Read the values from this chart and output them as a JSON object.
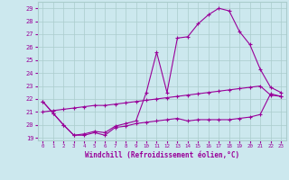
{
  "xlabel": "Windchill (Refroidissement éolien,°C)",
  "bg_color": "#cce8ee",
  "grid_color": "#aacccc",
  "line_color": "#990099",
  "xlim_min": -0.5,
  "xlim_max": 23.5,
  "ylim_min": 18.8,
  "ylim_max": 29.5,
  "yticks": [
    19,
    20,
    21,
    22,
    23,
    24,
    25,
    26,
    27,
    28,
    29
  ],
  "xticks": [
    0,
    1,
    2,
    3,
    4,
    5,
    6,
    7,
    8,
    9,
    10,
    11,
    12,
    13,
    14,
    15,
    16,
    17,
    18,
    19,
    20,
    21,
    22,
    23
  ],
  "series1_x": [
    0,
    1,
    2,
    3,
    4,
    5,
    6,
    7,
    8,
    9,
    10,
    11,
    12,
    13,
    14,
    15,
    16,
    17,
    18,
    19,
    20,
    21,
    22,
    23
  ],
  "series1_y": [
    21.8,
    20.9,
    20.0,
    19.2,
    19.2,
    19.4,
    19.2,
    19.8,
    19.9,
    20.1,
    20.2,
    20.3,
    20.4,
    20.5,
    20.3,
    20.4,
    20.4,
    20.4,
    20.4,
    20.5,
    20.6,
    20.8,
    22.4,
    22.2
  ],
  "series2_x": [
    0,
    1,
    2,
    3,
    4,
    5,
    6,
    7,
    8,
    9,
    10,
    11,
    12,
    13,
    14,
    15,
    16,
    17,
    18,
    19,
    20,
    21,
    22,
    23
  ],
  "series2_y": [
    21.0,
    21.1,
    21.2,
    21.3,
    21.4,
    21.5,
    21.5,
    21.6,
    21.7,
    21.8,
    21.9,
    22.0,
    22.1,
    22.2,
    22.3,
    22.4,
    22.5,
    22.6,
    22.7,
    22.8,
    22.9,
    23.0,
    22.3,
    22.2
  ],
  "series3_x": [
    0,
    1,
    2,
    3,
    4,
    5,
    6,
    7,
    8,
    9,
    10,
    11,
    12,
    13,
    14,
    15,
    16,
    17,
    18,
    19,
    20,
    21,
    22,
    23
  ],
  "series3_y": [
    21.8,
    20.9,
    20.0,
    19.2,
    19.3,
    19.5,
    19.4,
    19.9,
    20.1,
    20.3,
    22.5,
    25.6,
    22.5,
    26.7,
    26.8,
    27.8,
    28.5,
    29.0,
    28.8,
    27.2,
    26.2,
    24.3,
    22.9,
    22.5
  ]
}
